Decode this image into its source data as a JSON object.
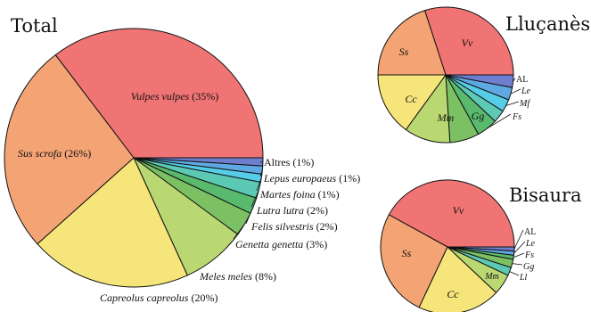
{
  "chart_data": [
    {
      "type": "pie",
      "title": "Total",
      "unit_suffix": "%",
      "slices": [
        {
          "label": "Vulpes vulpes",
          "value": 35,
          "color": "#f07474"
        },
        {
          "label": "Altres",
          "value": 1,
          "color": "#6f7fd0"
        },
        {
          "label": "Lepus europaeus",
          "value": 1,
          "color": "#5fa9e3"
        },
        {
          "label": "Martes foina",
          "value": 1,
          "color": "#55cde6"
        },
        {
          "label": "Lutra lutra",
          "value": 2,
          "color": "#5cc9b4"
        },
        {
          "label": "Felis silvestris",
          "value": 2,
          "color": "#59b96d"
        },
        {
          "label": "Genetta genetta",
          "value": 3,
          "color": "#7cc064"
        },
        {
          "label": "Meles meles",
          "value": 8,
          "color": "#b9d872"
        },
        {
          "label": "Capreolus capreolus",
          "value": 20,
          "color": "#f6e57a"
        },
        {
          "label": "Sus scrofa",
          "value": 26,
          "color": "#f4a474"
        }
      ]
    },
    {
      "type": "pie",
      "title": "Lluçanès",
      "slices": [
        {
          "label": "Vv",
          "value": 30,
          "color": "#f07474"
        },
        {
          "label": "AL",
          "value": 3,
          "color": "#6f7fd0"
        },
        {
          "label": "Le",
          "value": 3,
          "color": "#5fa9e3"
        },
        {
          "label": "Mf",
          "value": 3,
          "color": "#55cde6"
        },
        {
          "label": "",
          "value": 3,
          "color": "#5cc9b4"
        },
        {
          "label": "Fs",
          "value": 5,
          "color": "#59b96d"
        },
        {
          "label": "Gg",
          "value": 7,
          "color": "#7cc064"
        },
        {
          "label": "Mm",
          "value": 11,
          "color": "#b9d872"
        },
        {
          "label": "Cc",
          "value": 15,
          "color": "#f6e57a"
        },
        {
          "label": "Ss",
          "value": 20,
          "color": "#f4a474"
        }
      ]
    },
    {
      "type": "pie",
      "title": "Bisaura",
      "slices": [
        {
          "label": "Vv",
          "value": 42,
          "color": "#f07474"
        },
        {
          "label": "AL",
          "value": 1,
          "color": "#6f7fd0"
        },
        {
          "label": "Le",
          "value": 1,
          "color": "#5fa9e3"
        },
        {
          "label": "Fs",
          "value": 1,
          "color": "#59b96d"
        },
        {
          "label": "Gg",
          "value": 2,
          "color": "#7cc064"
        },
        {
          "label": "Ll",
          "value": 2,
          "color": "#5cc9b4"
        },
        {
          "label": "Mm",
          "value": 5,
          "color": "#b9d872"
        },
        {
          "label": "Cc",
          "value": 20,
          "color": "#f6e57a"
        },
        {
          "label": "Ss",
          "value": 26,
          "color": "#f4a474"
        }
      ]
    }
  ]
}
